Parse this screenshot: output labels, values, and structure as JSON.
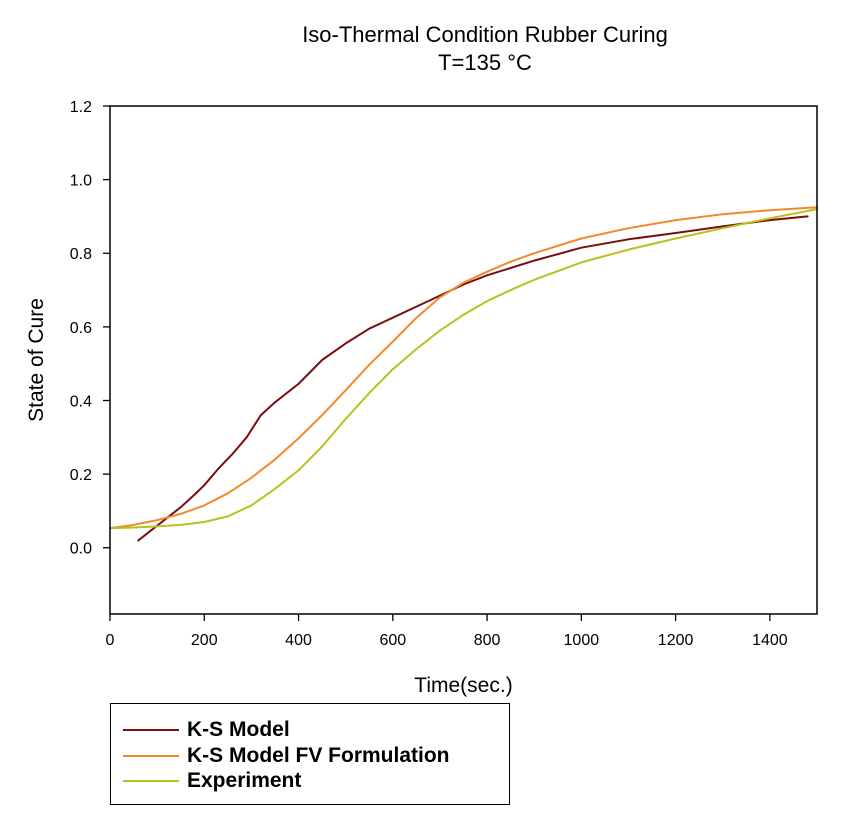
{
  "chart_data": {
    "type": "line",
    "title": "Iso-Thermal Condition Rubber Curing",
    "subtitle": "T=135 °C",
    "xlabel": "Time(sec.)",
    "ylabel": "State of Cure",
    "xlim": [
      0,
      1500
    ],
    "ylim": [
      -0.18,
      1.2
    ],
    "xticks": [
      0,
      200,
      400,
      600,
      800,
      1000,
      1200,
      1400
    ],
    "xtick_labels": [
      "0",
      "200",
      "400",
      "600",
      "800",
      "1000",
      "1200",
      "1400"
    ],
    "yticks": [
      0.0,
      0.2,
      0.4,
      0.6,
      0.8,
      1.0,
      1.2
    ],
    "ytick_labels": [
      "0.0",
      "0.2",
      "0.4",
      "0.6",
      "0.8",
      "1.0",
      "1.2"
    ],
    "grid": false,
    "legend_position": "bottom-left, below plot",
    "series": [
      {
        "name": "K-S Model",
        "color": "#7a0e0e",
        "x": [
          60,
          100,
          150,
          180,
          200,
          230,
          260,
          290,
          320,
          350,
          400,
          450,
          500,
          550,
          600,
          650,
          700,
          750,
          800,
          850,
          900,
          1000,
          1100,
          1200,
          1300,
          1400,
          1480
        ],
        "y": [
          0.02,
          0.06,
          0.11,
          0.145,
          0.17,
          0.215,
          0.255,
          0.3,
          0.36,
          0.395,
          0.445,
          0.51,
          0.555,
          0.595,
          0.625,
          0.655,
          0.685,
          0.715,
          0.74,
          0.76,
          0.78,
          0.815,
          0.838,
          0.855,
          0.873,
          0.89,
          0.9
        ]
      },
      {
        "name": "K-S Model FV Formulation",
        "color": "#f28a2a",
        "x": [
          0,
          50,
          100,
          150,
          200,
          250,
          300,
          350,
          400,
          450,
          500,
          550,
          600,
          650,
          700,
          750,
          800,
          850,
          900,
          1000,
          1100,
          1200,
          1300,
          1400,
          1500
        ],
        "y": [
          0.053,
          0.062,
          0.075,
          0.092,
          0.115,
          0.148,
          0.19,
          0.24,
          0.297,
          0.36,
          0.428,
          0.497,
          0.56,
          0.625,
          0.68,
          0.72,
          0.75,
          0.777,
          0.8,
          0.84,
          0.868,
          0.89,
          0.906,
          0.917,
          0.925
        ]
      },
      {
        "name": "Experiment",
        "color": "#b8c21a",
        "x": [
          0,
          50,
          100,
          150,
          200,
          250,
          300,
          350,
          400,
          450,
          500,
          550,
          600,
          650,
          700,
          750,
          800,
          850,
          900,
          1000,
          1100,
          1200,
          1300,
          1400,
          1500
        ],
        "y": [
          0.053,
          0.055,
          0.058,
          0.062,
          0.07,
          0.085,
          0.115,
          0.16,
          0.21,
          0.275,
          0.35,
          0.42,
          0.485,
          0.54,
          0.59,
          0.633,
          0.67,
          0.7,
          0.728,
          0.775,
          0.81,
          0.84,
          0.868,
          0.895,
          0.92
        ]
      }
    ]
  }
}
